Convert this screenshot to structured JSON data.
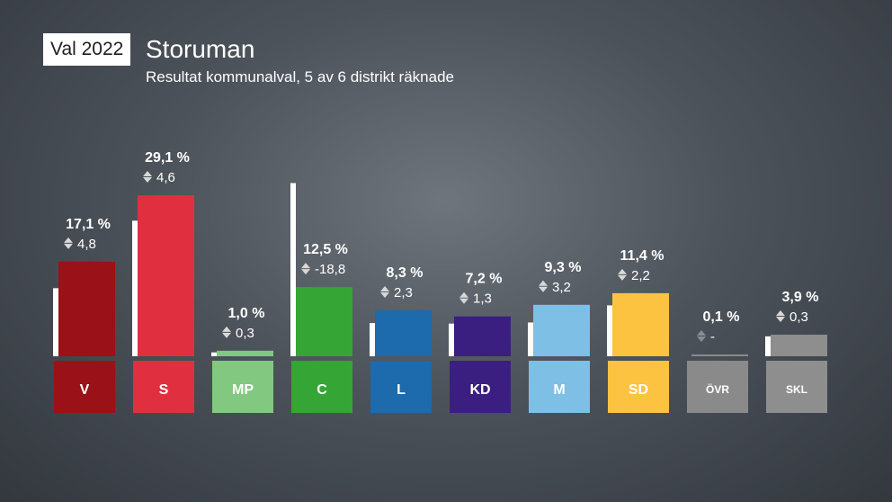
{
  "header": {
    "badge": "Val 2022",
    "title": "Storuman",
    "subtitle": "Resultat kommunalval, 5 av 6 distrikt räknade"
  },
  "chart_data": {
    "type": "bar",
    "categories": [
      "V",
      "S",
      "MP",
      "C",
      "L",
      "KD",
      "M",
      "SD",
      "ÖVR",
      "SKL"
    ],
    "series": [
      {
        "values": [
          17.1,
          29.1,
          1.0,
          12.5,
          8.3,
          7.2,
          9.3,
          11.4,
          0.1,
          3.9
        ]
      },
      {
        "values": [
          12.3,
          24.5,
          0.7,
          31.3,
          6.0,
          5.9,
          6.1,
          9.2,
          null,
          3.6
        ]
      }
    ],
    "value_labels": [
      "17,1 %",
      "29,1 %",
      "1,0 %",
      "12,5 %",
      "8,3 %",
      "7,2 %",
      "9,3 %",
      "11,4 %",
      "0,1 %",
      "3,9 %"
    ],
    "change_labels": [
      "4,8",
      "4,6",
      "0,3",
      "-18,8",
      "2,3",
      "1,3",
      "3,2",
      "2,2",
      "-",
      "0,3"
    ],
    "colors": [
      "#9b1118",
      "#e03040",
      "#83c880",
      "#35a535",
      "#1d6aad",
      "#3a1f80",
      "#7dbfe5",
      "#fcc340",
      "#8a8a8a",
      "#8e8e8e"
    ],
    "label_colors": [
      "#9b1118",
      "#e03040",
      "#83c880",
      "#35a535",
      "#1d6aad",
      "#3a1f80",
      "#7dbfe5",
      "#fcc340",
      "#8a8a8a",
      "#8e8e8e"
    ],
    "ylim": [
      0,
      32
    ]
  }
}
